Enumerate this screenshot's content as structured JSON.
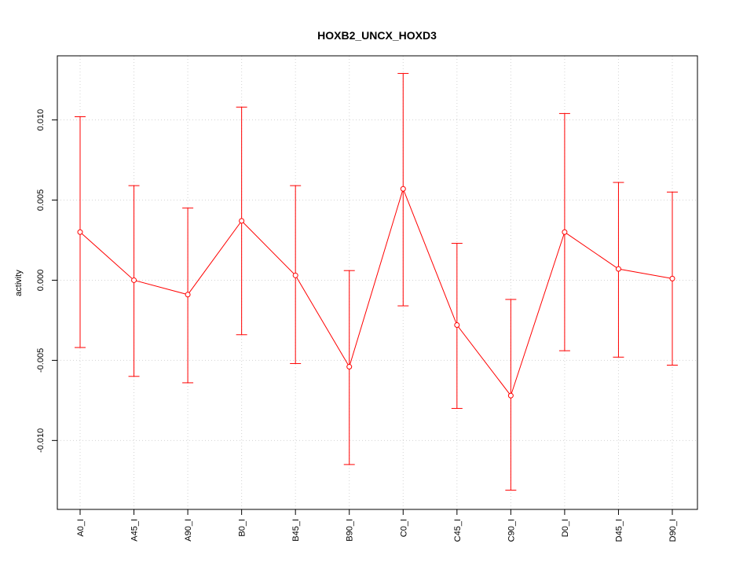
{
  "chart_data": {
    "type": "line",
    "title": "HOXB2_UNCX_HOXD3",
    "xlabel": "",
    "ylabel": "activity",
    "categories": [
      "A0_I",
      "A45_I",
      "A90_I",
      "B0_I",
      "B45_I",
      "B90_I",
      "C0_I",
      "C45_I",
      "C90_I",
      "D0_I",
      "D45_I",
      "D90_I"
    ],
    "series": [
      {
        "values": [
          0.003,
          0.0,
          -0.0009,
          0.0037,
          0.0003,
          -0.0054,
          0.0057,
          -0.0028,
          -0.0072,
          0.003,
          0.0007,
          0.0001
        ],
        "upper": [
          0.0102,
          0.0059,
          0.0045,
          0.0108,
          0.0059,
          0.0006,
          0.0129,
          0.0023,
          -0.0012,
          0.0104,
          0.0061,
          0.0055
        ],
        "lower": [
          -0.0042,
          -0.006,
          -0.0064,
          -0.0034,
          -0.0052,
          -0.0115,
          -0.0016,
          -0.008,
          -0.0131,
          -0.0044,
          -0.0048,
          -0.0053
        ],
        "color": "#ff0000"
      }
    ],
    "yticks": [
      -0.01,
      -0.005,
      0.0,
      0.005,
      0.01
    ],
    "ytick_labels": [
      "-0.010",
      "-0.005",
      "0.000",
      "0.005",
      "0.010"
    ],
    "ylim": [
      -0.0143,
      0.014
    ],
    "grid": true
  }
}
